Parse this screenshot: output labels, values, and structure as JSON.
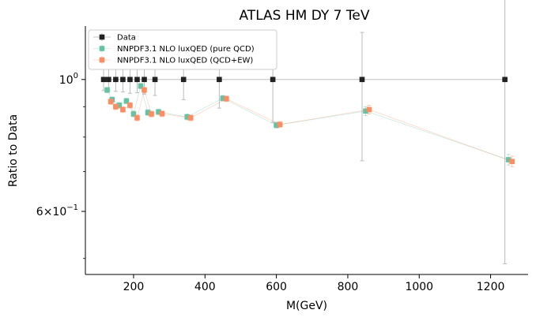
{
  "chart_data": {
    "type": "scatter",
    "title": "ATLAS HM DY 7 TeV",
    "xlabel": "M(GeV)",
    "ylabel": "Ratio to Data",
    "xlim": [
      65,
      1305
    ],
    "ylim": [
      0.47,
      1.23
    ],
    "yscale": "log",
    "grid": false,
    "legend_position": "top-left",
    "x_ticks": [
      {
        "value": 200,
        "label": "200"
      },
      {
        "value": 400,
        "label": "400"
      },
      {
        "value": 600,
        "label": "600"
      },
      {
        "value": 800,
        "label": "800"
      },
      {
        "value": 1000,
        "label": "1000"
      },
      {
        "value": 1200,
        "label": "1200"
      }
    ],
    "y_major_ticks": [
      {
        "value": 1.0,
        "base": "10",
        "exp": "0"
      },
      {
        "value": 0.6,
        "coef": "6",
        "base": "10",
        "exp": "−1"
      }
    ],
    "y_minor_ticks": [
      0.5,
      0.7,
      0.8,
      0.9
    ],
    "series": [
      {
        "name": "Data",
        "color": "#222222",
        "connect": true,
        "x": [
          116,
          130,
          150,
          170,
          190,
          210,
          230,
          260,
          340,
          440,
          590,
          840,
          1240
        ],
        "y": [
          1.0,
          1.0,
          1.0,
          1.0,
          1.0,
          1.0,
          1.0,
          1.0,
          1.0,
          1.0,
          1.0,
          1.0,
          1.0
        ],
        "err_low": [
          0.958,
          0.958,
          0.955,
          0.953,
          0.948,
          0.95,
          0.945,
          0.94,
          0.925,
          0.895,
          0.847,
          0.73,
          0.49
        ],
        "err_high": [
          1.046,
          1.046,
          1.049,
          1.05,
          1.055,
          1.06,
          1.062,
          1.065,
          1.075,
          1.11,
          1.12,
          1.2,
          1.41
        ]
      },
      {
        "name": "NNPDF3.1 NLO luxQED (pure QCD)",
        "color": "#66c2a5",
        "connect": true,
        "x": [
          126,
          140,
          160,
          180,
          200,
          220,
          240,
          270,
          350,
          450,
          600,
          850,
          1250
        ],
        "y": [
          0.96,
          0.925,
          0.905,
          0.92,
          0.875,
          0.975,
          0.88,
          0.882,
          0.865,
          0.93,
          0.838,
          0.885,
          0.733
        ],
        "err_low": [
          0.95,
          0.915,
          0.895,
          0.91,
          0.865,
          0.965,
          0.87,
          0.872,
          0.855,
          0.92,
          0.828,
          0.87,
          0.718
        ],
        "err_high": [
          0.97,
          0.935,
          0.915,
          0.93,
          0.885,
          0.985,
          0.89,
          0.892,
          0.875,
          0.94,
          0.848,
          0.9,
          0.748
        ]
      },
      {
        "name": "NNPDF3.1 NLO luxQED (QCD+EW)",
        "color": "#fc8d62",
        "connect": true,
        "x": [
          136,
          150,
          170,
          190,
          210,
          230,
          250,
          280,
          360,
          460,
          610,
          860,
          1260
        ],
        "y": [
          0.918,
          0.9,
          0.89,
          0.905,
          0.862,
          0.96,
          0.875,
          0.876,
          0.862,
          0.928,
          0.84,
          0.89,
          0.728
        ],
        "err_low": [
          0.908,
          0.89,
          0.88,
          0.895,
          0.852,
          0.95,
          0.865,
          0.866,
          0.852,
          0.918,
          0.83,
          0.875,
          0.713
        ],
        "err_high": [
          0.928,
          0.91,
          0.9,
          0.915,
          0.872,
          0.97,
          0.885,
          0.886,
          0.872,
          0.938,
          0.85,
          0.905,
          0.743
        ]
      }
    ]
  }
}
